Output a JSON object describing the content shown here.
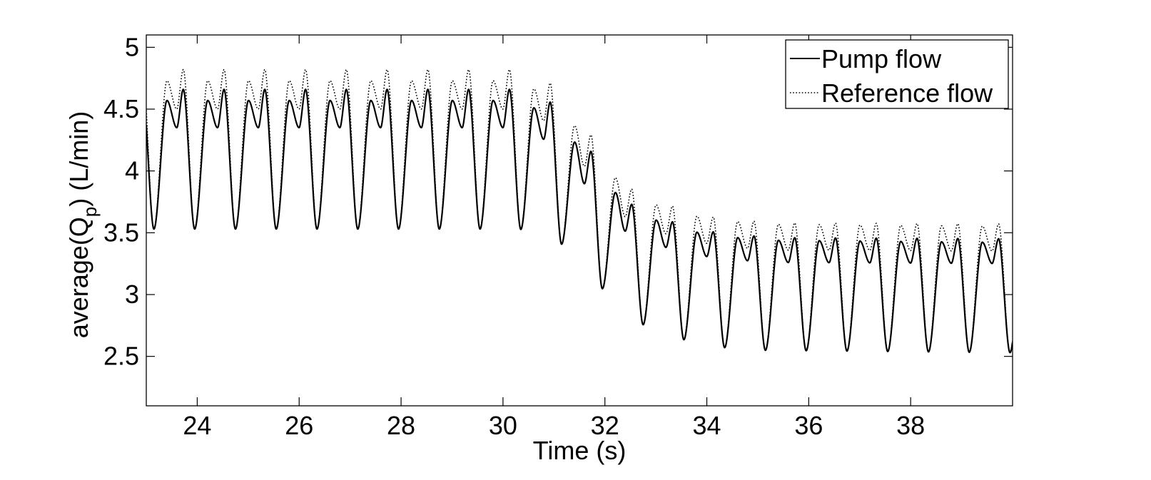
{
  "chart_data": {
    "type": "line",
    "title": "",
    "xlabel": "Time (s)",
    "ylabel_main": "average(Q",
    "ylabel_sub": "p",
    "ylabel_tail": ") (L/min)",
    "xlim": [
      23,
      40
    ],
    "ylim": [
      2.1,
      5.1
    ],
    "xticks": [
      24,
      26,
      28,
      30,
      32,
      34,
      36,
      38
    ],
    "xtick_labels": [
      "24",
      "26",
      "28",
      "30",
      "32",
      "34",
      "36",
      "38"
    ],
    "yticks": [
      2.5,
      3,
      3.5,
      4,
      4.5,
      5
    ],
    "ytick_labels": [
      "2.5",
      "3",
      "3.5",
      "4",
      "4.5",
      "5"
    ],
    "grid": false,
    "legend_position": "top-right",
    "series": [
      {
        "name": "Pump flow",
        "style": "solid",
        "period": 0.8,
        "min_start": 23.15,
        "stages": [
          {
            "t": 23.0,
            "trough": 3.53,
            "peak1": 4.57,
            "notch": 4.35,
            "peak2": 4.66
          },
          {
            "t": 30.1,
            "trough": 3.53,
            "peak1": 4.57,
            "notch": 4.35,
            "peak2": 4.66
          },
          {
            "t": 30.9,
            "trough": 3.52,
            "peak1": 4.38,
            "notch": 4.05,
            "peak2": 4.33
          },
          {
            "t": 31.7,
            "trough": 3.16,
            "peak1": 3.91,
            "notch": 3.56,
            "peak2": 3.78
          },
          {
            "t": 32.5,
            "trough": 2.8,
            "peak1": 3.64,
            "notch": 3.41,
            "peak2": 3.62
          },
          {
            "t": 33.3,
            "trough": 2.66,
            "peak1": 3.52,
            "notch": 3.32,
            "peak2": 3.52
          },
          {
            "t": 34.1,
            "trough": 2.58,
            "peak1": 3.47,
            "notch": 3.28,
            "peak2": 3.48
          },
          {
            "t": 34.9,
            "trough": 2.55,
            "peak1": 3.44,
            "notch": 3.26,
            "peak2": 3.46
          },
          {
            "t": 40.0,
            "trough": 2.53,
            "peak1": 3.42,
            "notch": 3.25,
            "peak2": 3.45
          }
        ]
      },
      {
        "name": "Reference flow",
        "style": "dotted",
        "period": 0.8,
        "min_start": 23.15,
        "stages": [
          {
            "t": 23.0,
            "trough": 3.53,
            "peak1": 4.73,
            "notch": 4.5,
            "peak2": 4.82
          },
          {
            "t": 30.1,
            "trough": 3.53,
            "peak1": 4.73,
            "notch": 4.5,
            "peak2": 4.82
          },
          {
            "t": 30.9,
            "trough": 3.52,
            "peak1": 4.52,
            "notch": 4.2,
            "peak2": 4.47
          },
          {
            "t": 31.7,
            "trough": 3.16,
            "peak1": 4.03,
            "notch": 3.68,
            "peak2": 3.9
          },
          {
            "t": 32.5,
            "trough": 2.8,
            "peak1": 3.76,
            "notch": 3.52,
            "peak2": 3.75
          },
          {
            "t": 33.3,
            "trough": 2.66,
            "peak1": 3.65,
            "notch": 3.43,
            "peak2": 3.64
          },
          {
            "t": 34.1,
            "trough": 2.58,
            "peak1": 3.6,
            "notch": 3.38,
            "peak2": 3.6
          },
          {
            "t": 34.9,
            "trough": 2.55,
            "peak1": 3.57,
            "notch": 3.36,
            "peak2": 3.58
          },
          {
            "t": 40.0,
            "trough": 2.53,
            "peak1": 3.55,
            "notch": 3.35,
            "peak2": 3.57
          }
        ]
      }
    ]
  }
}
